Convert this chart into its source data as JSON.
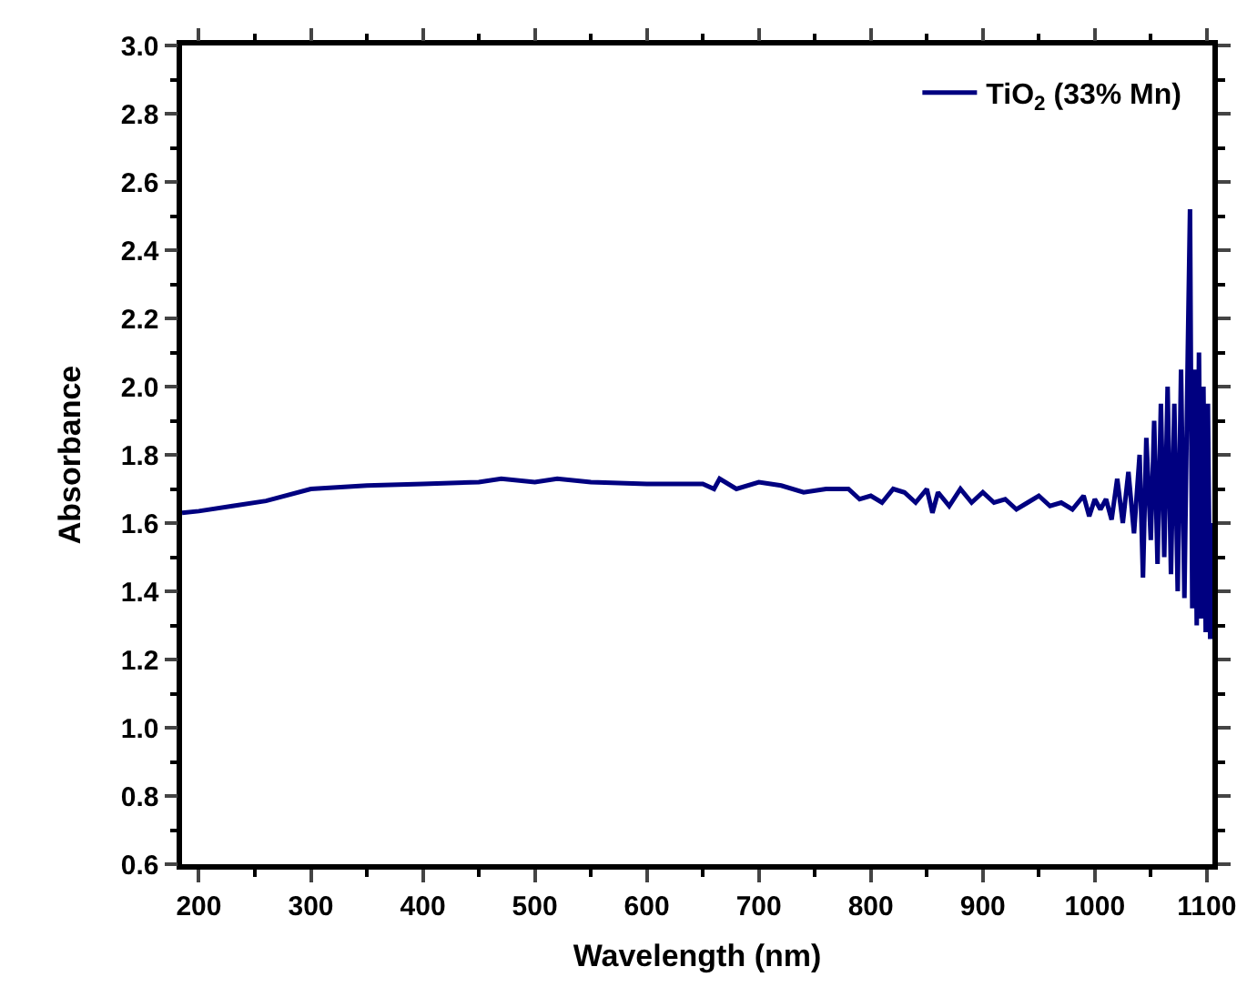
{
  "chart_data": {
    "type": "line",
    "xlabel": "Wavelength (nm)",
    "ylabel": "Absorbance",
    "xlim": [
      185,
      1105
    ],
    "xticks": [
      200,
      300,
      400,
      500,
      600,
      700,
      800,
      900,
      1000,
      1100
    ],
    "ylim": [
      0.6,
      3.0
    ],
    "yticks": [
      {
        "value": 0.6,
        "label": "0.6"
      },
      {
        "value": 0.8,
        "label": "0.8"
      },
      {
        "value": 1.0,
        "label": "1.0"
      },
      {
        "value": 1.2,
        "label": "1.2"
      },
      {
        "value": 1.4,
        "label": "1.4"
      },
      {
        "value": 1.6,
        "label": "1.6"
      },
      {
        "value": 1.8,
        "label": "1.8"
      },
      {
        "value": 2.0,
        "label": "2.0"
      },
      {
        "value": 2.2,
        "label": "2.2"
      },
      {
        "value": 2.4,
        "label": "2.4"
      },
      {
        "value": 2.6,
        "label": "2.6"
      },
      {
        "value": 2.8,
        "label": "2.8"
      },
      {
        "value": 3.0,
        "label": "3.0"
      }
    ],
    "grid": false,
    "legend": "top right",
    "marker": "none",
    "line_style": "solid",
    "series": [
      {
        "name": "TiO$_{2}$ (33% Mn)",
        "color": "#000080",
        "x": [
          185,
          200,
          230,
          260,
          300,
          350,
          400,
          450,
          470,
          500,
          520,
          550,
          600,
          650,
          660,
          665,
          680,
          700,
          720,
          740,
          760,
          780,
          790,
          800,
          810,
          820,
          830,
          840,
          850,
          855,
          860,
          870,
          880,
          890,
          900,
          910,
          920,
          930,
          940,
          950,
          960,
          970,
          980,
          990,
          995,
          1000,
          1005,
          1010,
          1015,
          1020,
          1025,
          1030,
          1035,
          1040,
          1043,
          1046,
          1050,
          1053,
          1056,
          1059,
          1062,
          1065,
          1068,
          1071,
          1074,
          1077,
          1080,
          1083,
          1085,
          1087,
          1089,
          1091,
          1093,
          1095,
          1097,
          1099,
          1101,
          1103,
          1104
        ],
        "values": [
          1.63,
          1.635,
          1.65,
          1.665,
          1.7,
          1.71,
          1.715,
          1.72,
          1.73,
          1.72,
          1.73,
          1.72,
          1.715,
          1.715,
          1.7,
          1.73,
          1.7,
          1.72,
          1.71,
          1.69,
          1.7,
          1.7,
          1.67,
          1.68,
          1.66,
          1.7,
          1.69,
          1.66,
          1.7,
          1.63,
          1.69,
          1.65,
          1.7,
          1.66,
          1.69,
          1.66,
          1.67,
          1.64,
          1.66,
          1.68,
          1.65,
          1.66,
          1.64,
          1.68,
          1.62,
          1.67,
          1.64,
          1.67,
          1.61,
          1.73,
          1.6,
          1.75,
          1.57,
          1.8,
          1.44,
          1.85,
          1.55,
          1.9,
          1.48,
          1.95,
          1.5,
          2.0,
          1.45,
          1.95,
          1.4,
          2.05,
          1.38,
          2.1,
          2.52,
          1.35,
          2.05,
          1.3,
          2.1,
          1.32,
          2.0,
          1.28,
          1.95,
          1.26,
          1.6
        ]
      }
    ]
  }
}
